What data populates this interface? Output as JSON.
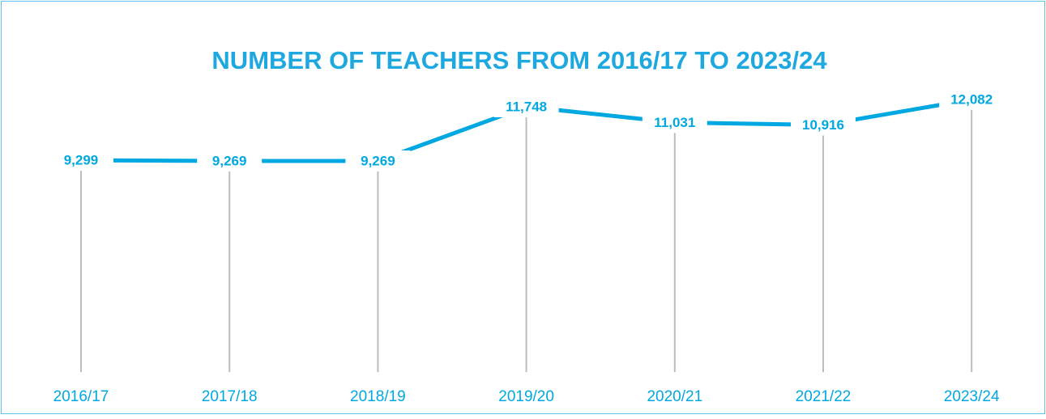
{
  "chart_data": {
    "type": "line",
    "title": "NUMBER OF TEACHERS FROM 2016/17 TO 2023/24",
    "categories": [
      "2016/17",
      "2017/18",
      "2018/19",
      "2019/20",
      "2020/21",
      "2021/22",
      "2023/24"
    ],
    "values": [
      9299,
      9269,
      9269,
      11748,
      11031,
      10916,
      12082
    ],
    "value_labels": [
      "9,299",
      "9,269",
      "9,269",
      "11,748",
      "11,031",
      "10,916",
      "12,082"
    ],
    "color": "#00a8e1"
  }
}
